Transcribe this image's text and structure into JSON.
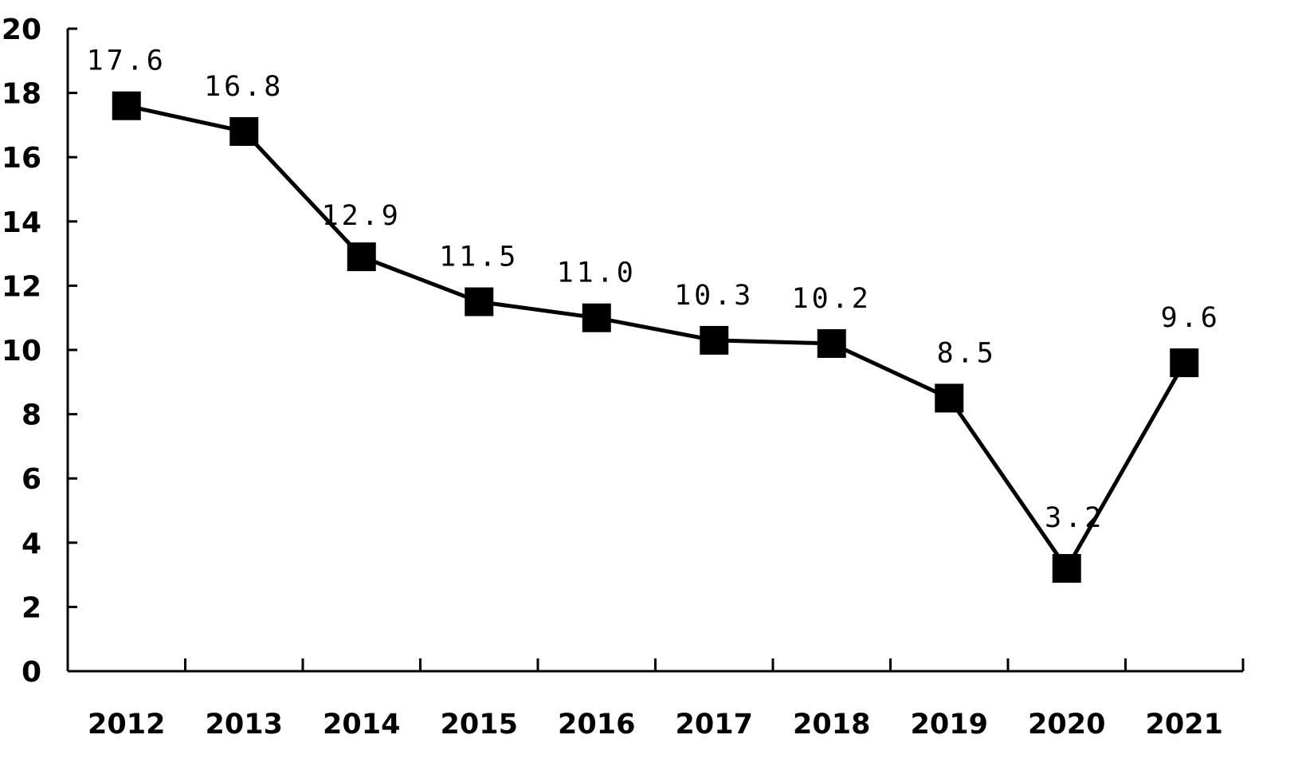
{
  "chart_data": {
    "type": "line",
    "title": "",
    "xlabel": "",
    "ylabel": "",
    "categories": [
      "2012",
      "2013",
      "2014",
      "2015",
      "2016",
      "2017",
      "2018",
      "2019",
      "2020",
      "2021"
    ],
    "series": [
      {
        "values": [
          17.6,
          16.8,
          12.9,
          11.5,
          11.0,
          10.3,
          10.2,
          8.5,
          3.2,
          9.6
        ],
        "labels": [
          "17.6",
          "16.8",
          "12.9",
          "11.5",
          "11.0",
          "10.3",
          "10.2",
          "8.5",
          "3.2",
          "9.6"
        ],
        "marker": "square",
        "color": "#000000"
      }
    ],
    "ylim": [
      0,
      20
    ],
    "yticks": [
      "0",
      "2",
      "4",
      "6",
      "8",
      "10",
      "12",
      "14",
      "16",
      "18",
      "20"
    ],
    "grid": false,
    "legend": "none"
  }
}
